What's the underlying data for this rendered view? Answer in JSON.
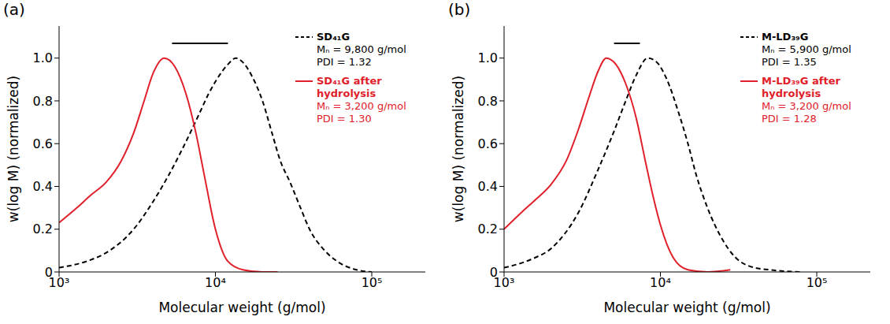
{
  "chart_data": [
    {
      "type": "line",
      "title": "(a)",
      "x_label": "Molecular weight (g/mol)",
      "y_label": "w(log M) (normalized)",
      "log": "x",
      "grid": false,
      "legend": "upper right",
      "xlim": [
        1000,
        220000
      ],
      "xticks": [
        {
          "value": 1000,
          "label": "10³"
        },
        {
          "value": 10000,
          "label": "10⁴"
        },
        {
          "value": 100000,
          "label": "10⁵"
        }
      ],
      "ylim": [
        0,
        1.15
      ],
      "yticks": [
        0,
        0.2,
        0.4,
        0.6,
        0.8,
        {
          "value": 1,
          "label": "1.0"
        }
      ],
      "series": [
        {
          "name": "SD₄₁G",
          "color": "#000000",
          "line_style": "dashed",
          "annotations": [
            "Mₙ = 9,800 g/mol",
            "PDI = 1.32"
          ],
          "x": [
            1000,
            1500,
            2000,
            3000,
            4000,
            5000,
            6000,
            7000,
            8000,
            9000,
            10000,
            12000,
            13500,
            15000,
            17000,
            20000,
            23000,
            26000,
            30000,
            35000,
            40000,
            50000,
            60000,
            80000,
            100000
          ],
          "values": [
            0.02,
            0.05,
            0.09,
            0.2,
            0.33,
            0.45,
            0.56,
            0.66,
            0.75,
            0.83,
            0.89,
            0.97,
            1.0,
            0.98,
            0.92,
            0.8,
            0.65,
            0.52,
            0.42,
            0.3,
            0.2,
            0.1,
            0.05,
            0.01,
            0
          ]
        },
        {
          "name": "SD₄₁G after hydrolysis",
          "color": "#e0202a",
          "line_style": "solid",
          "annotations": [
            "Mₙ = 3,200 g/mol",
            "PDI = 1.30"
          ],
          "x": [
            1000,
            1300,
            1600,
            2000,
            2500,
            3000,
            3500,
            4000,
            4700,
            5500,
            6500,
            7500,
            8500,
            10000,
            12000,
            15000,
            20000,
            25000
          ],
          "values": [
            0.23,
            0.3,
            0.36,
            0.42,
            0.52,
            0.65,
            0.8,
            0.93,
            1.0,
            0.96,
            0.83,
            0.65,
            0.45,
            0.2,
            0.05,
            0.01,
            0,
            0
          ]
        }
      ]
    },
    {
      "type": "line",
      "title": "(b)",
      "x_label": "Molecular weight (g/mol)",
      "y_label": "w(log M) (normalized)",
      "log": "x",
      "grid": false,
      "legend": "upper right",
      "xlim": [
        1000,
        220000
      ],
      "xticks": [
        {
          "value": 1000,
          "label": "10³"
        },
        {
          "value": 10000,
          "label": "10⁴"
        },
        {
          "value": 100000,
          "label": "10⁵"
        }
      ],
      "ylim": [
        0,
        1.15
      ],
      "yticks": [
        0,
        0.2,
        0.4,
        0.6,
        0.8,
        {
          "value": 1,
          "label": "1.0"
        }
      ],
      "series": [
        {
          "name": "M-LD₃₉G",
          "color": "#000000",
          "line_style": "dashed",
          "annotations": [
            "Mₙ = 5,900 g/mol",
            "PDI = 1.35"
          ],
          "x": [
            1000,
            1500,
            2000,
            3000,
            4000,
            5000,
            6000,
            7000,
            8300,
            9500,
            11000,
            13000,
            15000,
            17000,
            20000,
            25000,
            30000,
            40000,
            50000,
            80000
          ],
          "values": [
            0.02,
            0.06,
            0.11,
            0.28,
            0.48,
            0.65,
            0.8,
            0.92,
            1.0,
            0.98,
            0.9,
            0.75,
            0.6,
            0.45,
            0.3,
            0.15,
            0.07,
            0.02,
            0.01,
            0
          ]
        },
        {
          "name": "M-LD₃₉G after hydrolysis",
          "color": "#e0202a",
          "line_style": "solid",
          "annotations": [
            "Mₙ = 3,200 g/mol",
            "PDI = 1.28"
          ],
          "x": [
            1000,
            1300,
            1600,
            2000,
            2500,
            3000,
            3500,
            4000,
            4500,
            5200,
            6000,
            7000,
            8000,
            9000,
            10000,
            12000,
            15000,
            20000,
            28000
          ],
          "values": [
            0.2,
            0.28,
            0.34,
            0.41,
            0.52,
            0.67,
            0.82,
            0.94,
            1.0,
            0.97,
            0.88,
            0.72,
            0.52,
            0.35,
            0.22,
            0.07,
            0.01,
            0,
            0.01
          ]
        }
      ]
    }
  ]
}
